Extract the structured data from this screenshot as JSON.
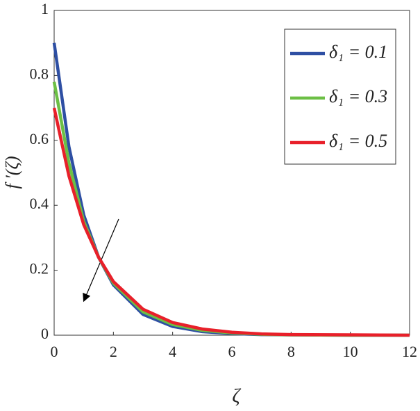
{
  "chart_data": {
    "type": "line",
    "xlabel": "ζ",
    "ylabel": "f ′(ζ)",
    "x": [
      0,
      0.5,
      1,
      1.5,
      2,
      3,
      4,
      5,
      6,
      7,
      8,
      10,
      12
    ],
    "series": [
      {
        "name": "δ₁ = 0.1",
        "color": "#2e4fa3",
        "values": [
          0.9,
          0.58,
          0.37,
          0.24,
          0.155,
          0.064,
          0.027,
          0.011,
          0.005,
          0.002,
          0.001,
          0,
          0
        ]
      },
      {
        "name": "δ₁ = 0.3",
        "color": "#6cbf45",
        "values": [
          0.78,
          0.53,
          0.35,
          0.24,
          0.16,
          0.072,
          0.033,
          0.015,
          0.007,
          0.003,
          0.001,
          0,
          0
        ]
      },
      {
        "name": "δ₁ = 0.5",
        "color": "#e8202a",
        "values": [
          0.7,
          0.49,
          0.34,
          0.24,
          0.165,
          0.08,
          0.039,
          0.019,
          0.009,
          0.004,
          0.002,
          0.001,
          0
        ]
      }
    ],
    "xlim": [
      0,
      12
    ],
    "xticks": [
      0,
      2,
      4,
      6,
      8,
      10,
      12
    ],
    "ylim": [
      0,
      1
    ],
    "yticks": [
      0,
      0.2,
      0.4,
      0.6,
      0.8,
      1
    ],
    "legend": "upper right"
  }
}
